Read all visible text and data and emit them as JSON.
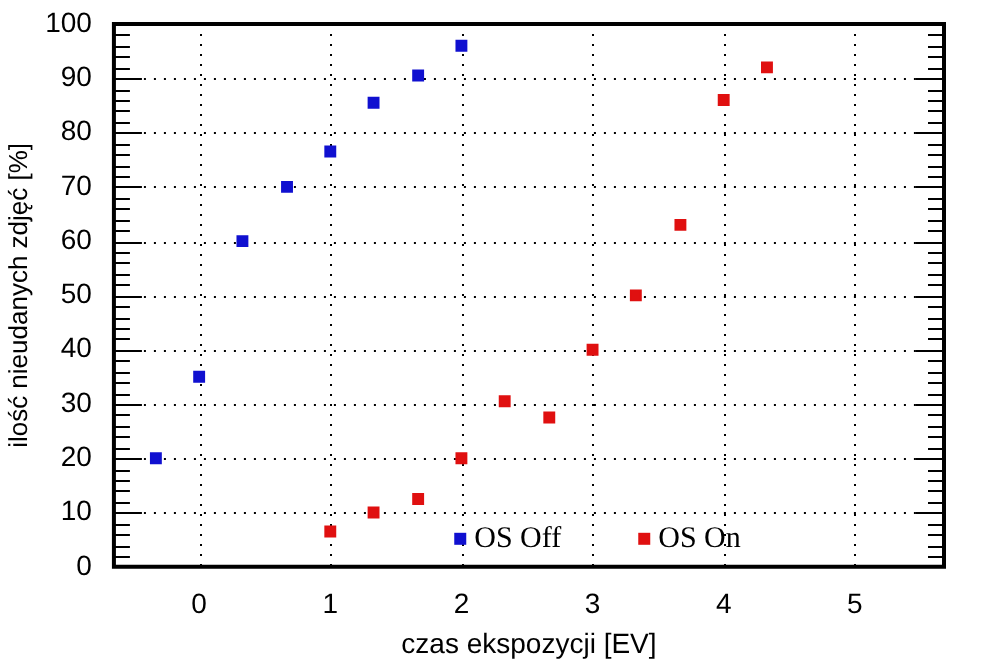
{
  "chart_data": {
    "type": "scatter",
    "xlabel": "czas ekspozycji [EV]",
    "ylabel": "ilość nieudanych zdjęć [%]",
    "xlim": [
      -0.65,
      5.68
    ],
    "xticks": [
      0,
      1,
      2,
      3,
      4,
      5
    ],
    "ylim": [
      0,
      100
    ],
    "yticks": [
      0,
      10,
      20,
      30,
      40,
      50,
      60,
      70,
      80,
      90,
      100
    ],
    "grid": true,
    "legend": "bottom",
    "marker": "square",
    "series": [
      {
        "name": "OS Off",
        "color": "#1010d0",
        "x": [
          -0.33,
          0,
          0.33,
          0.67,
          1,
          1.33,
          1.67,
          2
        ],
        "values": [
          20,
          35,
          60,
          70,
          76.5,
          85.5,
          90.5,
          96
        ]
      },
      {
        "name": "OS On",
        "color": "#e01010",
        "x": [
          1,
          1.33,
          1.67,
          2,
          2.33,
          2.67,
          3,
          3.33,
          3.67,
          4,
          4.33
        ],
        "values": [
          6.5,
          10,
          12.5,
          20,
          30.5,
          27.5,
          40,
          50,
          63,
          86,
          92
        ]
      }
    ]
  }
}
